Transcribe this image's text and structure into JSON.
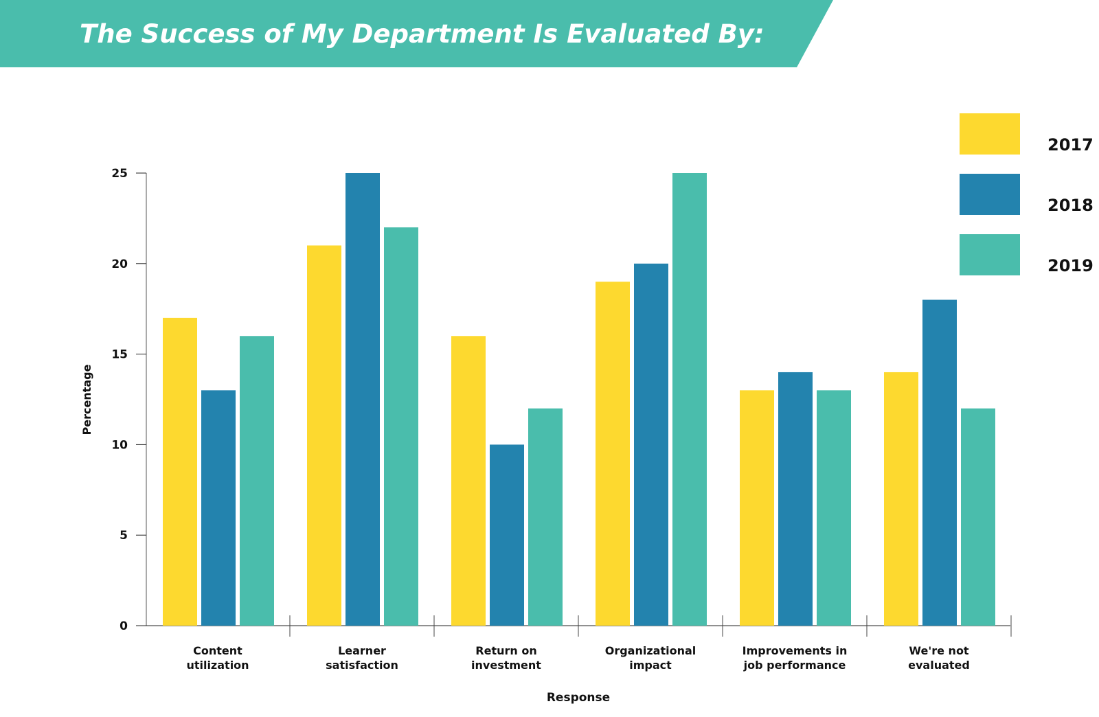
{
  "chart_data": {
    "type": "bar",
    "title": "The Success of My Department Is Evaluated By:",
    "xlabel": "Response",
    "ylabel": "Percentage",
    "ylim": [
      0,
      25
    ],
    "yticks": [
      "0",
      "5",
      "10",
      "15",
      "20",
      "25"
    ],
    "grid": false,
    "legend_placement": "top-right",
    "categories": [
      [
        "Content",
        "utilization"
      ],
      [
        "Learner",
        "satisfaction"
      ],
      [
        "Return on",
        "investment"
      ],
      [
        "Organizational",
        "impact"
      ],
      [
        "Improvements in",
        "job performance"
      ],
      [
        "We're not",
        "evaluated"
      ]
    ],
    "series": [
      {
        "name": "2017",
        "color": "#FDD92F",
        "values": [
          17,
          21,
          16,
          19,
          13,
          14
        ]
      },
      {
        "name": "2018",
        "color": "#2383AE",
        "values": [
          13,
          25,
          10,
          20,
          14,
          18
        ]
      },
      {
        "name": "2019",
        "color": "#4ABDAC",
        "values": [
          16,
          22,
          12,
          25,
          13,
          12
        ]
      }
    ],
    "banner_color": "#4ABDAC"
  }
}
